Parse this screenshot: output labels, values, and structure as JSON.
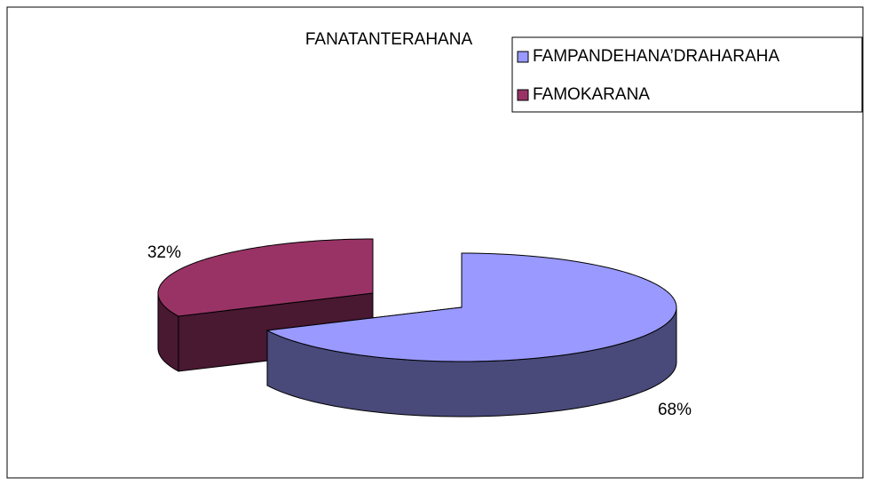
{
  "chart_data": {
    "type": "pie3d",
    "title": "FANATANTERAHANA",
    "categories": [
      "FAMPANDEHANA’DRAHARAHA",
      "FAMOKARANA"
    ],
    "values": [
      68,
      32
    ],
    "value_labels": [
      "68%",
      "32%"
    ],
    "series_colors": [
      "#9999ff",
      "#993366"
    ],
    "legend": "upper right"
  }
}
